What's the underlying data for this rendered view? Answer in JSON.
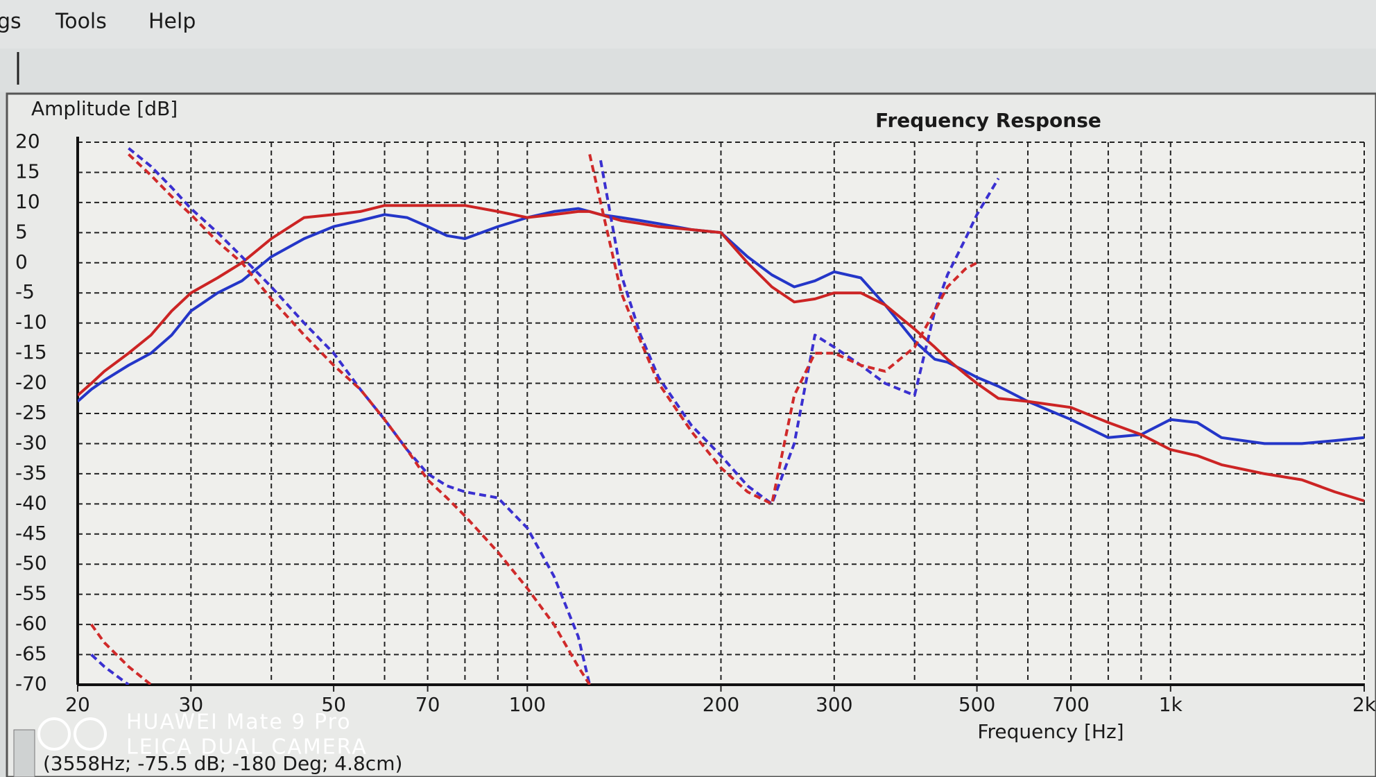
{
  "menu": [
    "gs",
    "Tools",
    "Help"
  ],
  "status": "(3558Hz; -75.5 dB; -180 Deg; 4.8cm)",
  "watermark": [
    "HUAWEI Mate 9 Pro",
    "LEICA DUAL CAMERA"
  ],
  "chart_data": {
    "type": "line",
    "title": "Frequency Response",
    "y_label": "Amplitude [dB]",
    "x_label": "Frequency [Hz]",
    "xscale": "log",
    "grid": true,
    "xlim": [
      20,
      2000
    ],
    "ylim": [
      -70,
      20
    ],
    "xticks": [
      20,
      30,
      50,
      70,
      100,
      200,
      300,
      500,
      700,
      {
        "value": 1000,
        "label": "1k"
      },
      {
        "value": 2000,
        "label": "2k"
      }
    ],
    "xgrid": [
      20,
      30,
      40,
      50,
      60,
      70,
      80,
      90,
      100,
      200,
      300,
      400,
      500,
      600,
      700,
      800,
      900,
      1000,
      2000
    ],
    "yticks": [
      20,
      15,
      10,
      5,
      0,
      -5,
      -10,
      -15,
      -20,
      -25,
      -30,
      -35,
      -40,
      -45,
      -50,
      -55,
      -60,
      -65,
      -70
    ],
    "x": [
      20,
      21,
      22,
      24,
      26,
      28,
      30,
      33,
      36,
      40,
      45,
      50,
      55,
      60,
      65,
      70,
      75,
      80,
      90,
      100,
      110,
      120,
      125,
      130,
      140,
      150,
      160,
      180,
      200,
      220,
      240,
      260,
      280,
      300,
      330,
      360,
      400,
      430,
      450,
      480,
      500,
      540,
      600,
      700,
      800,
      900,
      1000,
      1100,
      1200,
      1400,
      1600,
      1800,
      2000
    ],
    "series": [
      {
        "color": "#2436c8",
        "dashed": false,
        "values": [
          -23,
          -21,
          -19.5,
          -17,
          -15,
          -12,
          -8,
          -5,
          -3,
          1,
          4,
          6,
          7,
          8,
          7.5,
          6,
          4.5,
          4,
          6,
          7.5,
          8.5,
          9,
          8.5,
          8,
          7.5,
          7,
          6.5,
          5.5,
          5,
          1,
          -2,
          -4,
          -3,
          -1.5,
          -2.5,
          -7,
          -13,
          -16,
          -16.5,
          -18,
          -19,
          -20.5,
          -23,
          -26,
          -29,
          -28.5,
          -26,
          -26.5,
          -29,
          -30,
          -30,
          -29.5,
          -29
        ]
      },
      {
        "color": "#cc2424",
        "dashed": false,
        "values": [
          -22,
          -20,
          -18,
          -15,
          -12,
          -8,
          -5,
          -2.5,
          0,
          4,
          7.5,
          8,
          8.5,
          9.5,
          9.5,
          9.5,
          9.5,
          9.5,
          8.5,
          7.5,
          8,
          8.5,
          8.5,
          8,
          7,
          6.5,
          6,
          5.5,
          5,
          0,
          -4,
          -6.5,
          -6,
          -5,
          -5,
          -7,
          -11,
          -14,
          -16,
          -18.5,
          -20,
          -22.5,
          -23,
          -24,
          -26.5,
          -28.5,
          -31,
          -32,
          -33.5,
          -35,
          -36,
          -38,
          -39.5
        ]
      },
      {
        "color": "#3a30d0",
        "dashed": true,
        "values": [
          null,
          -65,
          -67,
          -70,
          null,
          null,
          null,
          null,
          null,
          null,
          null,
          null,
          null,
          null,
          null,
          null,
          null,
          null,
          null,
          null,
          null,
          null,
          null,
          null,
          null,
          null,
          null,
          null,
          null,
          null,
          null,
          null,
          null,
          null,
          null,
          null,
          null,
          null,
          null,
          null,
          null,
          null,
          null,
          null,
          null,
          null,
          null,
          null,
          null,
          null,
          null,
          null,
          null
        ]
      },
      {
        "color": "#3a30d0",
        "dashed": true,
        "values": [
          null,
          null,
          null,
          19,
          16,
          12.5,
          9,
          5,
          1,
          -4,
          -10,
          -15,
          -21,
          -26,
          -31,
          -35,
          -37,
          -38,
          -39,
          -44,
          -52,
          -62,
          -70,
          null,
          null,
          null,
          null,
          null,
          null,
          null,
          null,
          null,
          null,
          null,
          null,
          null,
          null,
          null,
          null,
          null,
          null,
          null,
          null,
          null,
          null,
          null,
          null,
          null,
          null,
          null,
          null,
          null,
          null
        ]
      },
      {
        "color": "#3a30d0",
        "dashed": true,
        "values": [
          null,
          null,
          null,
          null,
          null,
          null,
          null,
          null,
          null,
          null,
          null,
          null,
          null,
          null,
          null,
          null,
          null,
          null,
          null,
          null,
          null,
          null,
          null,
          17,
          -2,
          -12,
          -19,
          -27,
          -32,
          -37,
          -40,
          -30,
          -12,
          -14,
          -17,
          -20,
          -22,
          -8,
          -2,
          4,
          8,
          14,
          null,
          null,
          null,
          null,
          null,
          null,
          null,
          null,
          null,
          null,
          null
        ]
      },
      {
        "color": "#d02a2a",
        "dashed": true,
        "values": [
          null,
          -60,
          -63,
          -67,
          -70,
          null,
          null,
          null,
          null,
          null,
          null,
          null,
          null,
          null,
          null,
          null,
          null,
          null,
          null,
          null,
          null,
          null,
          null,
          null,
          null,
          null,
          null,
          null,
          null,
          null,
          null,
          null,
          null,
          null,
          null,
          null,
          null,
          null,
          null,
          null,
          null,
          null,
          null,
          null,
          null,
          null,
          null,
          null,
          null,
          null,
          null,
          null,
          null
        ]
      },
      {
        "color": "#d02a2a",
        "dashed": true,
        "values": [
          null,
          null,
          null,
          18,
          14.5,
          11,
          8,
          3.5,
          0,
          -6,
          -12,
          -17,
          -21,
          -26,
          -31,
          -36,
          -39,
          -42,
          -48,
          -54,
          -60,
          -67,
          -70,
          null,
          null,
          null,
          null,
          null,
          null,
          null,
          null,
          null,
          null,
          null,
          null,
          null,
          null,
          null,
          null,
          null,
          null,
          null,
          null,
          null,
          null,
          null,
          null,
          null,
          null,
          null,
          null,
          null,
          null
        ]
      },
      {
        "color": "#d02a2a",
        "dashed": true,
        "values": [
          null,
          null,
          null,
          null,
          null,
          null,
          null,
          null,
          null,
          null,
          null,
          null,
          null,
          null,
          null,
          null,
          null,
          null,
          null,
          null,
          null,
          null,
          18,
          10,
          -5,
          -13,
          -20,
          -28,
          -34,
          -38,
          -40,
          -22,
          -15,
          -15,
          -17,
          -18,
          -14,
          -8,
          -4,
          -1,
          0,
          null,
          null,
          null,
          null,
          null,
          null,
          null,
          null,
          null,
          null,
          null,
          null
        ]
      }
    ]
  }
}
